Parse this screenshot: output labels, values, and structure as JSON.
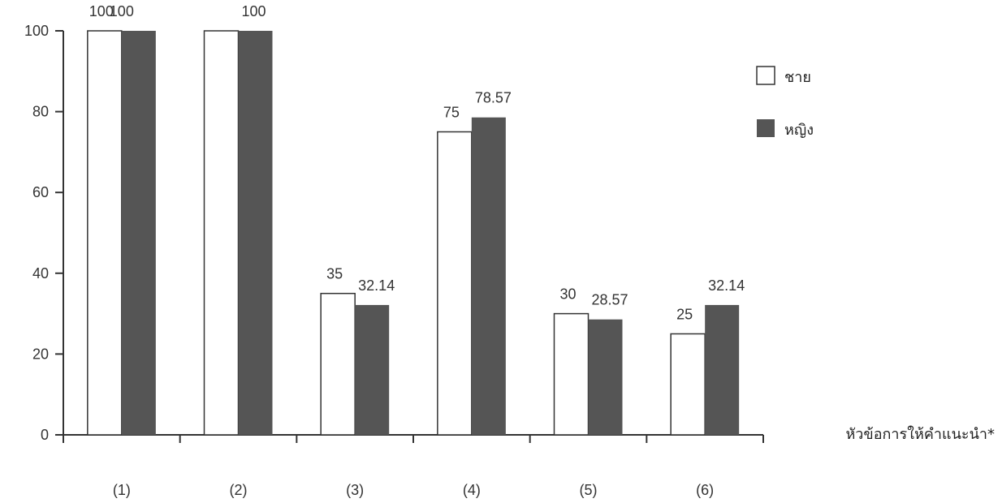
{
  "chart_data": {
    "type": "bar",
    "categories": [
      "(1)",
      "(2)",
      "(3)",
      "(4)",
      "(5)",
      "(6)"
    ],
    "series": [
      {
        "name": "ชาย",
        "values": [
          100,
          100,
          35,
          75,
          30,
          25
        ],
        "labels": [
          "100",
          "",
          "35",
          "75",
          "30",
          "25"
        ],
        "color": "#ffffff"
      },
      {
        "name": "หญิง",
        "values": [
          100,
          100,
          32.14,
          78.57,
          28.57,
          32.14
        ],
        "labels": [
          "",
          "100",
          "32.14",
          "78.57",
          "28.57",
          "32.14"
        ],
        "color": "#555555"
      }
    ],
    "extra_label": {
      "category_index": 0,
      "text": "100"
    },
    "xlabel": "หัวข้อการให้คำแนะนำ*",
    "ylabel": "",
    "ylim": [
      0,
      100
    ],
    "yticks": [
      0,
      20,
      40,
      60,
      80,
      100
    ],
    "grid": false,
    "legend_position": "top-right"
  }
}
